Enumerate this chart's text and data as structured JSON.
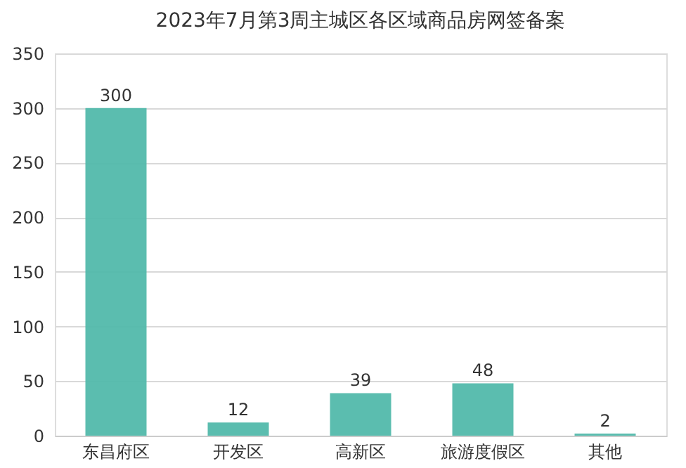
{
  "chart_data": {
    "type": "bar",
    "title": "2023年7月第3周主城区各区域商品房网签备案",
    "categories": [
      "东昌府区",
      "开发区",
      "高新区",
      "旅游度假区",
      "其他"
    ],
    "values": [
      300,
      12,
      39,
      48,
      2
    ],
    "color": "#52b9ab",
    "ylim": [
      0,
      350
    ],
    "yticks": [
      0,
      50,
      100,
      150,
      200,
      250,
      300,
      350
    ],
    "grid": "y",
    "data_labels": true
  }
}
